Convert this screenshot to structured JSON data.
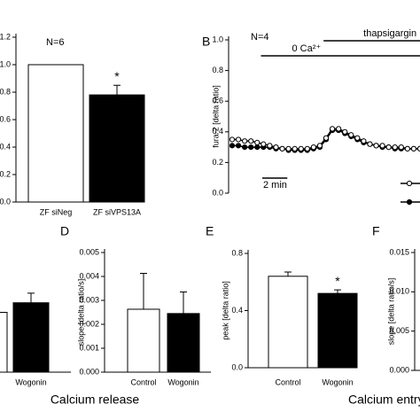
{
  "chart_data": [
    {
      "type": "bar",
      "annotation": "N=6",
      "categories": [
        "ZF siNeg",
        "ZF siVPS13A"
      ],
      "values": [
        1.0,
        0.78
      ],
      "errors": [
        null,
        0.07
      ],
      "markers": [
        null,
        "*"
      ],
      "colors": [
        "#ffffff",
        "#000000"
      ],
      "ylim": [
        0,
        1.2
      ],
      "yticks": [
        {
          "value": 0,
          "label": "0.0"
        },
        0.2,
        0.4,
        0.6,
        0.8,
        {
          "value": 1,
          "label": "1.0"
        },
        1.2
      ]
    },
    {
      "type": "line",
      "panel": "B",
      "annotation": "N=4",
      "ylabel": "fura-2 [delta ratio]",
      "x": [
        0,
        0.5,
        1,
        1.5,
        2,
        2.5,
        3,
        3.5,
        4,
        4.5,
        5,
        5.5,
        6,
        6.5,
        7,
        7.5,
        8,
        8.5,
        9,
        9.5,
        10,
        10.5,
        11,
        11.5,
        12,
        12.5,
        13,
        13.5,
        14,
        14.5,
        15
      ],
      "series": [
        {
          "color": "#000000",
          "marker": "filled",
          "values": [
            0.31,
            0.31,
            0.3,
            0.3,
            0.3,
            0.3,
            0.3,
            0.29,
            0.29,
            0.28,
            0.28,
            0.28,
            0.28,
            0.29,
            0.3,
            0.35,
            0.41,
            0.41,
            0.39,
            0.37,
            0.35,
            0.33,
            0.32,
            0.31,
            0.3,
            0.3,
            0.29,
            0.29,
            0.29,
            0.29,
            0.29
          ]
        },
        {
          "color": "#000000",
          "marker": "open",
          "values": [
            0.35,
            0.35,
            0.34,
            0.34,
            0.33,
            0.32,
            0.31,
            0.3,
            0.29,
            0.29,
            0.29,
            0.29,
            0.29,
            0.3,
            0.31,
            0.36,
            0.42,
            0.42,
            0.4,
            0.38,
            0.36,
            0.34,
            0.32,
            0.31,
            0.31,
            0.3,
            0.3,
            0.3,
            0.29,
            0.29,
            0.29
          ]
        }
      ],
      "events": [
        {
          "label": "0 Ca²⁺",
          "start": 2.3
        },
        {
          "label": "thapsigargin",
          "start": 7.3
        }
      ],
      "scale_bar": {
        "length": 2,
        "label": "2 min"
      },
      "xlim": [
        0,
        15
      ],
      "ylim": [
        0,
        1
      ],
      "yticks": [
        {
          "value": 0,
          "label": "0.0"
        },
        0.2,
        0.4,
        0.6,
        0.8,
        {
          "value": 1,
          "label": "1.0"
        }
      ]
    },
    {
      "type": "bar",
      "categories": [
        null,
        "Wogonin"
      ],
      "values": [
        0.0025,
        0.0029
      ],
      "errors": [
        null,
        0.0004
      ],
      "colors": [
        "#ffffff",
        "#000000"
      ],
      "ylim": [
        0,
        0.005
      ]
    },
    {
      "type": "bar",
      "panel": "D",
      "ylabel": "slope [delta ratio/s]",
      "group_label": "Calcium release",
      "categories": [
        "Control",
        "Wogonin"
      ],
      "values": [
        0.00263,
        0.00245
      ],
      "errors": [
        0.0015,
        0.0009
      ],
      "colors": [
        "#ffffff",
        "#000000"
      ],
      "ylim": [
        0,
        0.005
      ],
      "yticks": [
        {
          "value": 0,
          "label": "0.000"
        },
        0.001,
        0.002,
        0.003,
        0.004,
        0.005
      ]
    },
    {
      "type": "bar",
      "panel": "E",
      "ylabel": "peak [delta ratio]",
      "categories": [
        "Control",
        "Wogonin"
      ],
      "values": [
        0.64,
        0.52
      ],
      "errors": [
        0.03,
        0.025
      ],
      "markers": [
        null,
        "*"
      ],
      "colors": [
        "#ffffff",
        "#000000"
      ],
      "ylim": [
        0,
        0.8
      ],
      "yticks": [
        {
          "value": 0,
          "label": "0.0"
        },
        0.4,
        0.8
      ]
    },
    {
      "type": "bar",
      "panel": "F",
      "ylabel": "slope [delta ratio/s]",
      "group_label": "Calcium entry",
      "ylim": [
        0,
        0.015
      ],
      "yticks": [
        {
          "value": 0,
          "label": "0.000"
        },
        0.005,
        {
          "value": 0.01,
          "label": "0.010"
        },
        0.015
      ]
    }
  ]
}
